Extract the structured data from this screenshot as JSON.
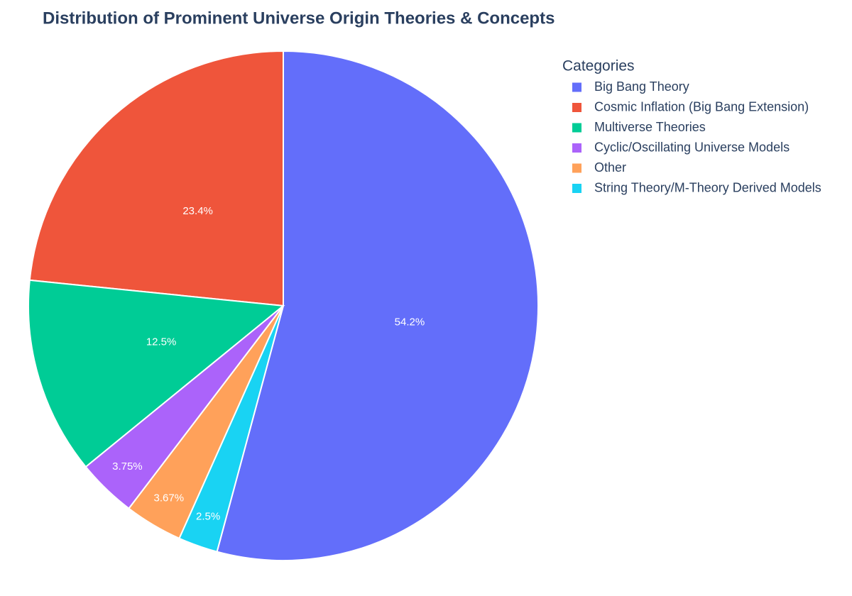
{
  "chart_data": {
    "type": "pie",
    "title": "Distribution of Prominent Universe Origin Theories & Concepts",
    "legend_title": "Categories",
    "categories": [
      "Big Bang Theory",
      "Cosmic Inflation (Big Bang Extension)",
      "Multiverse Theories",
      "Cyclic/Oscillating Universe Models",
      "Other",
      "String Theory/M-Theory Derived Models"
    ],
    "values": [
      54.2,
      23.4,
      12.5,
      3.75,
      3.67,
      2.5
    ],
    "value_labels": [
      "54.2%",
      "23.4%",
      "12.5%",
      "3.75%",
      "3.67%",
      "2.5%"
    ],
    "colors": [
      "#636efa",
      "#ef553b",
      "#00cc96",
      "#ab63fa",
      "#ffa15a",
      "#19d3f3"
    ],
    "legend": "right"
  }
}
